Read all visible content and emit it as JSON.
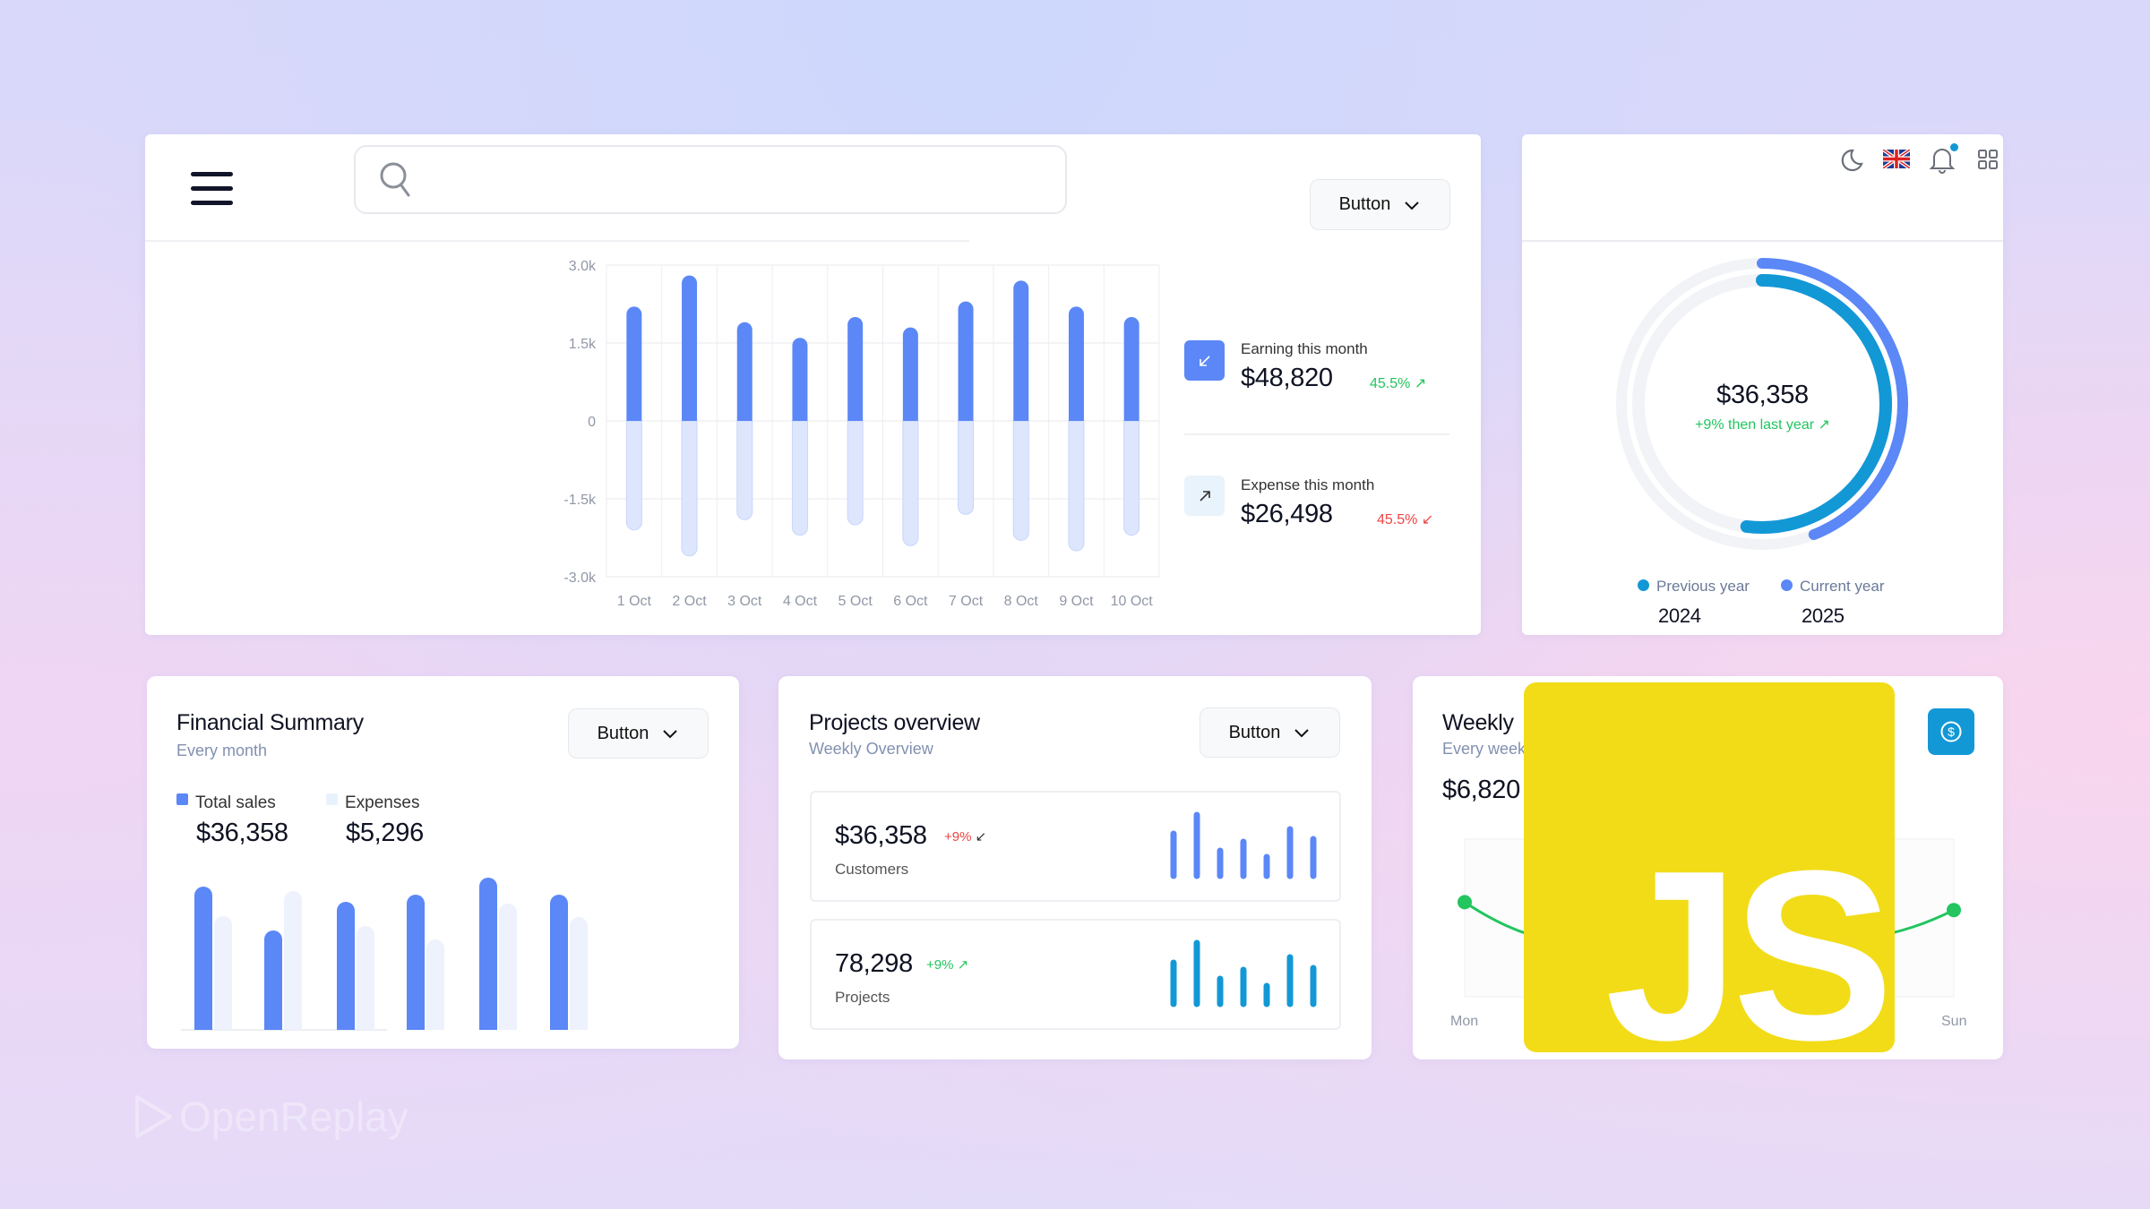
{
  "colors": {
    "primary": "#5b87f7",
    "primary_light": "#dde6fd",
    "teal": "#1398d6",
    "green": "#22c55e",
    "red": "#ef4444",
    "js_yellow": "#f2dc18"
  },
  "header": {
    "search_placeholder": "",
    "button_label": "Button",
    "icons": [
      "hamburger-menu-icon",
      "search-icon",
      "chevron-down-icon",
      "moon-icon",
      "uk-flag-icon",
      "bell-icon",
      "grid-icon"
    ],
    "notification_dot": true
  },
  "earnings": {
    "earning": {
      "label": "Earning this month",
      "value": "$48,820",
      "change": "45.5%",
      "trend": "up",
      "icon": "arrow-down-left-icon"
    },
    "expense": {
      "label": "Expense this month",
      "value": "$26,498",
      "change": "45.5%",
      "trend": "down",
      "icon": "arrow-up-right-icon"
    }
  },
  "chart_data": [
    {
      "type": "bar",
      "categories": [
        "1 Oct",
        "2 Oct",
        "3 Oct",
        "4 Oct",
        "5 Oct",
        "6 Oct",
        "7 Oct",
        "8 Oct",
        "9 Oct",
        "10 Oct"
      ],
      "series": [
        {
          "values": [
            2200,
            2800,
            1900,
            1600,
            2000,
            1800,
            2300,
            2700,
            2200,
            2000
          ]
        },
        {
          "values": [
            -2100,
            -2600,
            -1900,
            -2200,
            -2000,
            -2400,
            -1800,
            -2300,
            -2500,
            -2200
          ]
        }
      ],
      "ylim": [
        -3000,
        3000
      ],
      "ytick_labels": [
        "3.0k",
        "1.5k",
        "0",
        "-1.5k",
        "-3.0k"
      ],
      "yticks": [
        3000,
        1500,
        0,
        -1500,
        -3000
      ],
      "grid": true
    },
    {
      "type": "pie",
      "subtype": "double-ring",
      "center_value": "$36,358",
      "center_note": "+9% then last year",
      "series": [
        {
          "name": "Previous year",
          "year": "2024",
          "fraction": 0.52
        },
        {
          "name": "Current year",
          "year": "2025",
          "fraction": 0.44
        }
      ]
    },
    {
      "type": "bar",
      "title": "Financial Summary",
      "subtitle": "Every month",
      "series": [
        {
          "name": "Total sales",
          "total": "$36,358",
          "values": [
            157,
            108,
            140,
            148,
            167,
            148
          ]
        },
        {
          "name": "Expenses",
          "total": "$5,296",
          "values": [
            124,
            152,
            113,
            98,
            138,
            123
          ]
        }
      ]
    },
    {
      "type": "bar",
      "series": [
        {
          "name": "Customers",
          "values": [
            47,
            68,
            28,
            38,
            21,
            52,
            41
          ]
        },
        {
          "name": "Projects",
          "values": [
            46,
            68,
            28,
            38,
            20,
            52,
            40
          ]
        }
      ]
    },
    {
      "type": "line",
      "categories": [
        "Mon",
        "Sun"
      ],
      "series": [
        {
          "values": [
            0.6,
            0.55
          ]
        }
      ]
    }
  ],
  "donut": {
    "value": "$36,358",
    "note": "+9% then last year",
    "legend": [
      {
        "label": "Previous year",
        "year": "2024"
      },
      {
        "label": "Current year",
        "year": "2025"
      }
    ]
  },
  "financial": {
    "title": "Financial Summary",
    "subtitle": "Every month",
    "button_label": "Button",
    "legend": [
      {
        "label": "Total sales",
        "value": "$36,358"
      },
      {
        "label": "Expenses",
        "value": "$5,296"
      }
    ]
  },
  "projects": {
    "title": "Projects overview",
    "subtitle": "Weekly Overview",
    "button_label": "Button",
    "items": [
      {
        "value": "$36,358",
        "change": "+9%",
        "trend": "down",
        "label": "Customers"
      },
      {
        "value": "78,298",
        "change": "+9%",
        "trend": "up",
        "label": "Projects"
      }
    ]
  },
  "weekly": {
    "title": "Weekly",
    "subtitle": "Every week",
    "value": "$6,820",
    "x_start": "Mon",
    "x_end": "Sun",
    "icon": "dollar-circle-icon"
  },
  "overlay": {
    "logo": "JS"
  },
  "watermark": {
    "text": "OpenReplay"
  }
}
